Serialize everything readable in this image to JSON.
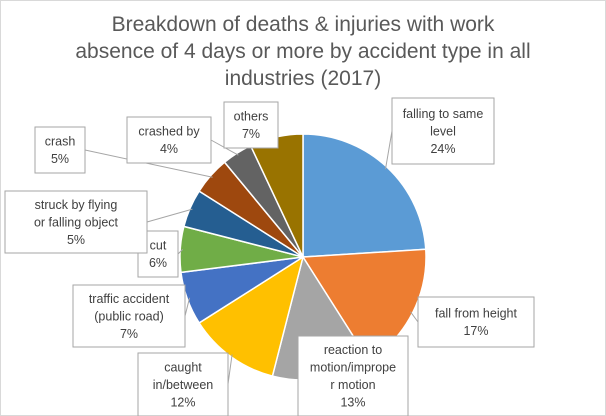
{
  "chart_data": {
    "type": "pie",
    "title": "Breakdown of deaths & injuries with work absence of 4 days or more by accident type in all industries (2017)",
    "title_lines": [
      "Breakdown of deaths & injuries with work",
      "absence of 4 days or more by accident type in all",
      "industries (2017)"
    ],
    "start_angle_deg": 0,
    "direction": "clockwise",
    "slices": [
      {
        "label": "falling to same level",
        "label_lines": [
          "falling to same",
          "level"
        ],
        "value": 24,
        "value_text": "24%",
        "color": "#5b9bd5"
      },
      {
        "label": "fall from height",
        "label_lines": [
          "fall from height"
        ],
        "value": 17,
        "value_text": "17%",
        "color": "#ed7d31"
      },
      {
        "label": "reaction to motion/improper motion",
        "label_lines": [
          "reaction to",
          "motion/imprope",
          "r motion"
        ],
        "value": 13,
        "value_text": "13%",
        "color": "#a5a5a5"
      },
      {
        "label": "caught in/between",
        "label_lines": [
          "caught",
          "in/between"
        ],
        "value": 12,
        "value_text": "12%",
        "color": "#ffc000"
      },
      {
        "label": "traffic accident (public road)",
        "label_lines": [
          "traffic accident",
          "(public road)"
        ],
        "value": 7,
        "value_text": "7%",
        "color": "#4472c4"
      },
      {
        "label": "cut",
        "label_lines": [
          "cut"
        ],
        "value": 6,
        "value_text": "6%",
        "color": "#70ad47"
      },
      {
        "label": "struck by flying or falling object",
        "label_lines": [
          "struck by flying",
          "or falling object"
        ],
        "value": 5,
        "value_text": "5%",
        "color": "#255e91"
      },
      {
        "label": "crash",
        "label_lines": [
          "crash"
        ],
        "value": 5,
        "value_text": "5%",
        "color": "#9e480e"
      },
      {
        "label": "crashed by",
        "label_lines": [
          "crashed by"
        ],
        "value": 4,
        "value_text": "4%",
        "color": "#636363"
      },
      {
        "label": "others",
        "label_lines": [
          "others"
        ],
        "value": 7,
        "value_text": "7%",
        "color": "#997300"
      }
    ]
  }
}
